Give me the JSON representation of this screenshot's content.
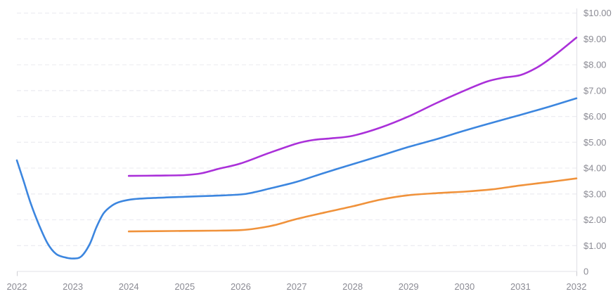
{
  "chart_data": {
    "type": "line",
    "title": "",
    "xlabel": "",
    "ylabel": "",
    "xlim": [
      2022,
      2032
    ],
    "ylim": [
      0,
      10
    ],
    "grid": "horizontal-dashed",
    "legend": "none",
    "y_axis_side": "right",
    "x_ticks": [
      {
        "v": 2022,
        "label": "2022"
      },
      {
        "v": 2023,
        "label": "2023"
      },
      {
        "v": 2024,
        "label": "2024"
      },
      {
        "v": 2025,
        "label": "2025"
      },
      {
        "v": 2026,
        "label": "2026"
      },
      {
        "v": 2027,
        "label": "2027"
      },
      {
        "v": 2028,
        "label": "2028"
      },
      {
        "v": 2029,
        "label": "2029"
      },
      {
        "v": 2030,
        "label": "2030"
      },
      {
        "v": 2031,
        "label": "2031"
      },
      {
        "v": 2032,
        "label": "2032"
      }
    ],
    "y_ticks": [
      {
        "v": 0,
        "label": "0"
      },
      {
        "v": 1,
        "label": "$1.00"
      },
      {
        "v": 2,
        "label": "$2.00"
      },
      {
        "v": 3,
        "label": "$3.00"
      },
      {
        "v": 4,
        "label": "$4.00"
      },
      {
        "v": 5,
        "label": "$5.00"
      },
      {
        "v": 6,
        "label": "$6.00"
      },
      {
        "v": 7,
        "label": "$7.00"
      },
      {
        "v": 8,
        "label": "$8.00"
      },
      {
        "v": 9,
        "label": "$9.00"
      },
      {
        "v": 10,
        "label": "$10.00"
      }
    ],
    "series": [
      {
        "name": "blue-line",
        "color": "#3c86df",
        "points": [
          [
            2022.0,
            4.3
          ],
          [
            2022.12,
            3.5
          ],
          [
            2022.25,
            2.62
          ],
          [
            2022.4,
            1.78
          ],
          [
            2022.55,
            1.08
          ],
          [
            2022.7,
            0.68
          ],
          [
            2022.85,
            0.55
          ],
          [
            2023.0,
            0.5
          ],
          [
            2023.15,
            0.58
          ],
          [
            2023.3,
            1.05
          ],
          [
            2023.42,
            1.7
          ],
          [
            2023.55,
            2.25
          ],
          [
            2023.7,
            2.55
          ],
          [
            2023.85,
            2.7
          ],
          [
            2024.1,
            2.8
          ],
          [
            2024.5,
            2.85
          ],
          [
            2025.0,
            2.89
          ],
          [
            2025.5,
            2.93
          ],
          [
            2026.0,
            2.98
          ],
          [
            2026.25,
            3.07
          ],
          [
            2026.5,
            3.2
          ],
          [
            2027.0,
            3.47
          ],
          [
            2027.5,
            3.82
          ],
          [
            2028.0,
            4.15
          ],
          [
            2028.5,
            4.48
          ],
          [
            2029.0,
            4.82
          ],
          [
            2029.5,
            5.12
          ],
          [
            2030.0,
            5.45
          ],
          [
            2030.5,
            5.76
          ],
          [
            2031.0,
            6.06
          ],
          [
            2031.5,
            6.37
          ],
          [
            2032.0,
            6.7
          ]
        ]
      },
      {
        "name": "purple-line",
        "color": "#aa30d9",
        "points": [
          [
            2024.0,
            3.7
          ],
          [
            2024.5,
            3.71
          ],
          [
            2025.0,
            3.73
          ],
          [
            2025.3,
            3.8
          ],
          [
            2025.6,
            3.97
          ],
          [
            2026.0,
            4.18
          ],
          [
            2026.5,
            4.58
          ],
          [
            2027.0,
            4.95
          ],
          [
            2027.3,
            5.09
          ],
          [
            2027.6,
            5.15
          ],
          [
            2028.0,
            5.25
          ],
          [
            2028.5,
            5.57
          ],
          [
            2029.0,
            6.0
          ],
          [
            2029.5,
            6.52
          ],
          [
            2030.0,
            7.0
          ],
          [
            2030.4,
            7.35
          ],
          [
            2030.7,
            7.5
          ],
          [
            2031.0,
            7.6
          ],
          [
            2031.3,
            7.9
          ],
          [
            2031.6,
            8.35
          ],
          [
            2032.0,
            9.05
          ]
        ]
      },
      {
        "name": "orange-line",
        "color": "#f0923b",
        "points": [
          [
            2024.0,
            1.55
          ],
          [
            2024.5,
            1.56
          ],
          [
            2025.0,
            1.57
          ],
          [
            2025.5,
            1.58
          ],
          [
            2026.0,
            1.6
          ],
          [
            2026.3,
            1.67
          ],
          [
            2026.6,
            1.79
          ],
          [
            2027.0,
            2.03
          ],
          [
            2027.5,
            2.28
          ],
          [
            2028.0,
            2.52
          ],
          [
            2028.5,
            2.78
          ],
          [
            2029.0,
            2.95
          ],
          [
            2029.5,
            3.03
          ],
          [
            2030.0,
            3.09
          ],
          [
            2030.5,
            3.18
          ],
          [
            2031.0,
            3.33
          ],
          [
            2031.5,
            3.46
          ],
          [
            2032.0,
            3.6
          ]
        ]
      }
    ],
    "colors": {
      "gridline": "#ededf2",
      "baseline": "#e7e7ec",
      "y_axis_line": "#e5e5ea",
      "tick": "#cfcfd4",
      "label": "#8b8b94",
      "background": "#ffffff"
    }
  }
}
